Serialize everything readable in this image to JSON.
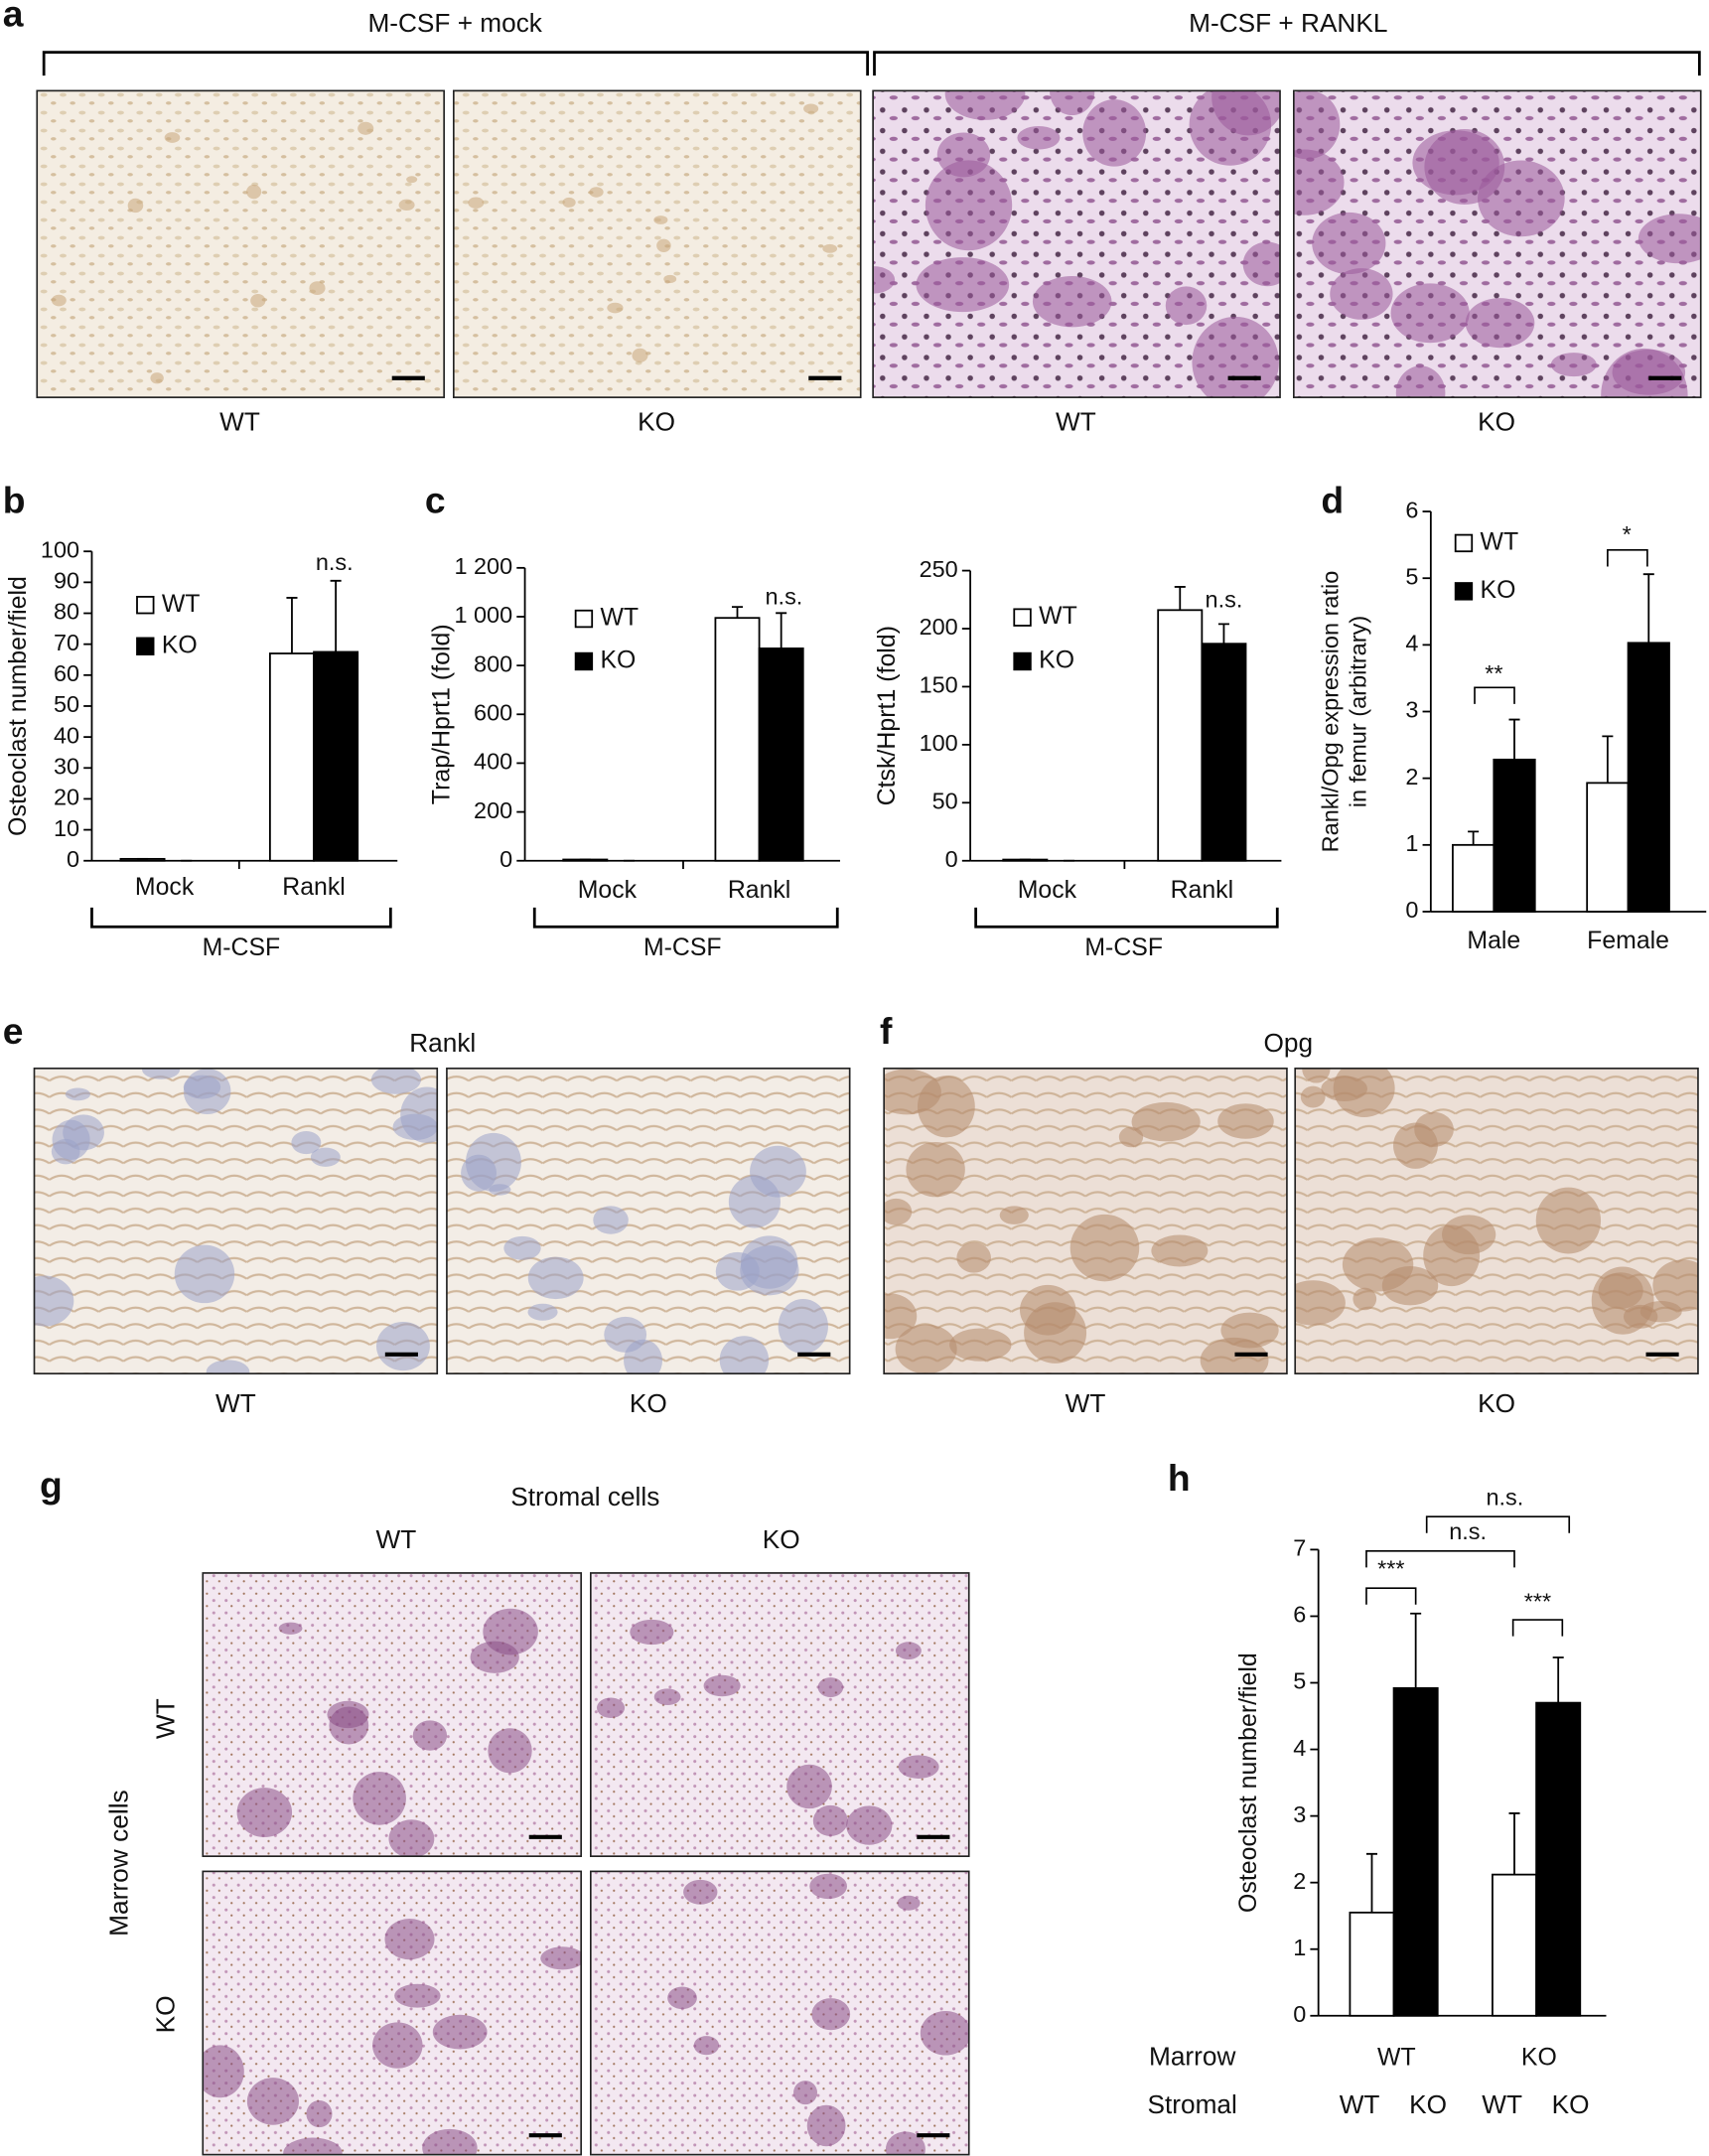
{
  "figure": {
    "panel_labels": [
      "a",
      "b",
      "c",
      "d",
      "e",
      "f",
      "g",
      "h"
    ],
    "a": {
      "groups": [
        "M-CSF + mock",
        "M-CSF + RANKL"
      ],
      "labels": [
        "WT",
        "KO",
        "WT",
        "KO"
      ]
    },
    "e": {
      "title": "Rankl",
      "labels": [
        "WT",
        "KO"
      ]
    },
    "f": {
      "title": "Opg",
      "labels": [
        "WT",
        "KO"
      ]
    },
    "g": {
      "title": "Stromal cells",
      "columns": [
        "WT",
        "KO"
      ],
      "row_axis": "Marrow cells",
      "rows": [
        "WT",
        "KO"
      ]
    }
  },
  "chart_data": [
    {
      "type": "bar",
      "ylabel": "Osteoclast number/field",
      "categories": [
        "Mock",
        "Rankl"
      ],
      "group_label": "M-CSF",
      "series": [
        {
          "name": "WT",
          "color": "#ffffff",
          "values": [
            0.6,
            67
          ],
          "errors": [
            0,
            18
          ]
        },
        {
          "name": "KO",
          "color": "#000000",
          "values": [
            0,
            67.5
          ],
          "errors": [
            0,
            23
          ]
        }
      ],
      "ylim": [
        0,
        100
      ],
      "yticks": [
        0,
        10,
        20,
        30,
        40,
        50,
        60,
        70,
        80,
        90,
        100
      ],
      "legend": "upper left",
      "annotations": [
        "n.s."
      ]
    },
    {
      "type": "bar",
      "ylabel": "Trap/Hprt1 (fold)",
      "categories": [
        "Mock",
        "Rankl"
      ],
      "group_label": "M-CSF",
      "series": [
        {
          "name": "WT",
          "color": "#ffffff",
          "values": [
            5,
            995
          ],
          "errors": [
            0,
            45
          ]
        },
        {
          "name": "KO",
          "color": "#000000",
          "values": [
            0,
            870
          ],
          "errors": [
            0,
            145
          ]
        }
      ],
      "ylim": [
        0,
        1200
      ],
      "yticks": [
        0,
        200,
        400,
        600,
        800,
        {
          "value": 1000,
          "label": "1 000"
        },
        {
          "value": 1200,
          "label": "1 200"
        }
      ],
      "legend": "upper left",
      "annotations": [
        "n.s."
      ]
    },
    {
      "type": "bar",
      "ylabel": "Ctsk/Hprt1 (fold)",
      "categories": [
        "Mock",
        "Rankl"
      ],
      "group_label": "M-CSF",
      "series": [
        {
          "name": "WT",
          "color": "#ffffff",
          "values": [
            1,
            216
          ],
          "errors": [
            0,
            20
          ]
        },
        {
          "name": "KO",
          "color": "#000000",
          "values": [
            0,
            187
          ],
          "errors": [
            0,
            17
          ]
        }
      ],
      "ylim": [
        0,
        250
      ],
      "yticks": [
        0,
        50,
        100,
        150,
        200,
        250
      ],
      "legend": "upper left",
      "annotations": [
        "n.s."
      ]
    },
    {
      "type": "bar",
      "ylabel": [
        "Rankl/Opg expression ratio",
        "in femur (arbitrary)"
      ],
      "categories": [
        "Male",
        "Female"
      ],
      "series": [
        {
          "name": "WT",
          "color": "#ffffff",
          "values": [
            1,
            1.93
          ],
          "errors": [
            0.2,
            0.7
          ]
        },
        {
          "name": "KO",
          "color": "#000000",
          "values": [
            2.28,
            4.03
          ],
          "errors": [
            0.6,
            1.03
          ]
        }
      ],
      "ylim": [
        0,
        6
      ],
      "yticks": [
        0,
        1,
        2,
        3,
        4,
        5,
        6
      ],
      "legend": "upper left",
      "annotations": [
        "**",
        "*"
      ]
    },
    {
      "type": "bar",
      "ylabel": "Osteoclast number/field",
      "categories": [
        "WT",
        "KO"
      ],
      "row_labels": [
        "Marrow",
        "Stromal"
      ],
      "series": [
        {
          "name": "WT",
          "color": "#ffffff",
          "values": [
            1.55,
            2.12
          ],
          "errors": [
            0.88,
            0.92
          ]
        },
        {
          "name": "KO",
          "color": "#000000",
          "values": [
            4.92,
            4.7
          ],
          "errors": [
            1.12,
            0.68
          ]
        }
      ],
      "ylim": [
        0,
        7
      ],
      "yticks": [
        0,
        1,
        2,
        3,
        4,
        5,
        6,
        7
      ],
      "annotations": [
        "***",
        "***",
        "n.s.",
        "n.s."
      ]
    }
  ]
}
